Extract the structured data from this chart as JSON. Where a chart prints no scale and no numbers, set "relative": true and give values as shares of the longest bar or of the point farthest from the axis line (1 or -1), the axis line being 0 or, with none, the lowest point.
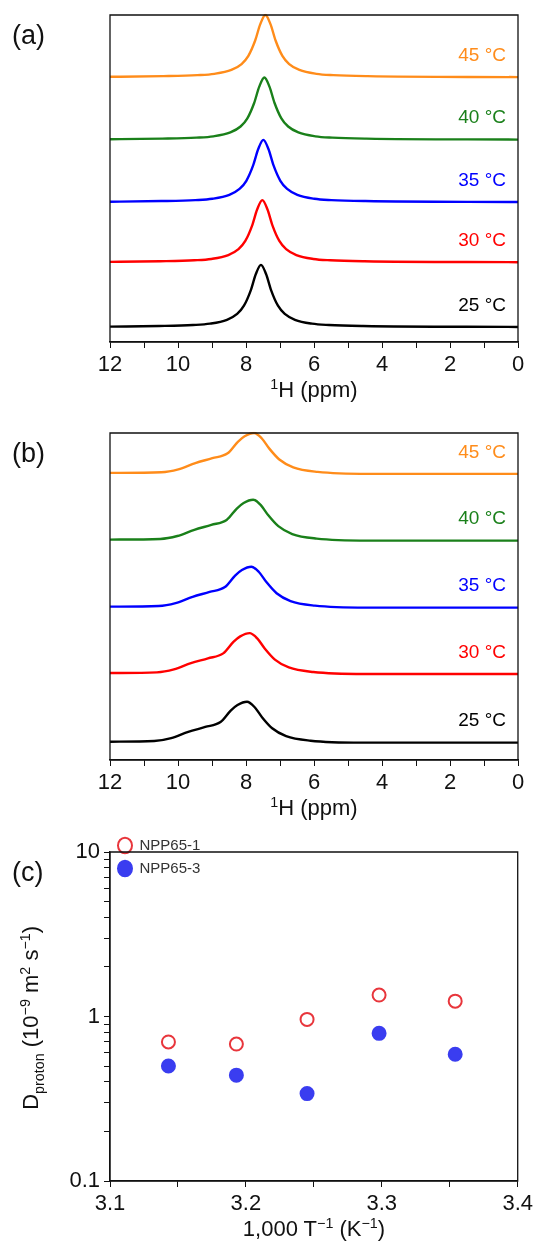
{
  "chart_data": [
    {
      "type": "line",
      "title": "(a)",
      "xlabel": "$^{1}$H (ppm)",
      "relative": true,
      "legend": false,
      "grid": false,
      "xlim": [
        12,
        0
      ],
      "xticks": [
        12,
        {
          "value": 11,
          "label": null
        },
        10,
        {
          "value": 9,
          "label": null
        },
        8,
        {
          "value": 7,
          "label": null
        },
        6,
        {
          "value": 5,
          "label": null
        },
        4,
        {
          "value": 3,
          "label": null
        },
        2,
        {
          "value": 1,
          "label": null
        },
        0
      ],
      "series": [
        {
          "name": "25 °C",
          "color": "#000000",
          "x": [
            12,
            10.56,
            9.56,
            9.06,
            8.56,
            8.26,
            8.06,
            7.86,
            7.71,
            7.56,
            7.41,
            7.26,
            7.06,
            6.86,
            6.56,
            6.06,
            5.56,
            4.56,
            0
          ],
          "values": [
            0.047,
            0.049,
            0.052,
            0.056,
            0.068,
            0.086,
            0.111,
            0.158,
            0.208,
            0.236,
            0.208,
            0.158,
            0.111,
            0.086,
            0.068,
            0.056,
            0.052,
            0.049,
            0.046
          ]
        },
        {
          "name": "30 °C",
          "color": "#ff0000",
          "x": [
            12,
            10.52,
            9.52,
            9.02,
            8.52,
            8.22,
            8.02,
            7.82,
            7.67,
            7.52,
            7.37,
            7.22,
            7.02,
            6.82,
            6.52,
            6.02,
            5.52,
            4.52,
            0
          ],
          "values": [
            0.245,
            0.247,
            0.25,
            0.254,
            0.266,
            0.284,
            0.309,
            0.356,
            0.406,
            0.434,
            0.406,
            0.356,
            0.309,
            0.284,
            0.266,
            0.254,
            0.25,
            0.247,
            0.244
          ]
        },
        {
          "name": "35 °C",
          "color": "#0000ff",
          "x": [
            12,
            10.49,
            9.49,
            8.99,
            8.49,
            8.19,
            7.99,
            7.79,
            7.64,
            7.49,
            7.34,
            7.19,
            6.99,
            6.79,
            6.49,
            5.99,
            5.49,
            4.49,
            0
          ],
          "values": [
            0.429,
            0.431,
            0.434,
            0.438,
            0.45,
            0.468,
            0.493,
            0.54,
            0.59,
            0.618,
            0.59,
            0.54,
            0.493,
            0.468,
            0.45,
            0.438,
            0.434,
            0.431,
            0.428
          ]
        },
        {
          "name": "40 °C",
          "color": "#1a801a",
          "x": [
            12,
            10.46,
            9.46,
            8.96,
            8.46,
            8.16,
            7.96,
            7.76,
            7.61,
            7.46,
            7.31,
            7.16,
            6.96,
            6.76,
            6.46,
            5.96,
            5.46,
            4.46,
            0
          ],
          "values": [
            0.62,
            0.622,
            0.625,
            0.629,
            0.641,
            0.659,
            0.684,
            0.731,
            0.781,
            0.809,
            0.781,
            0.731,
            0.684,
            0.659,
            0.641,
            0.629,
            0.625,
            0.622,
            0.619
          ]
        },
        {
          "name": "45 °C",
          "color": "#ff8c1a",
          "x": [
            12,
            10.43,
            9.43,
            8.93,
            8.43,
            8.13,
            7.93,
            7.73,
            7.58,
            7.43,
            7.28,
            7.13,
            6.93,
            6.73,
            6.43,
            5.93,
            5.43,
            4.43,
            0
          ],
          "values": [
            0.811,
            0.813,
            0.816,
            0.82,
            0.832,
            0.85,
            0.875,
            0.922,
            0.972,
            1.0,
            0.972,
            0.922,
            0.875,
            0.85,
            0.832,
            0.82,
            0.816,
            0.813,
            0.81
          ]
        }
      ]
    },
    {
      "type": "line",
      "title": "(b)",
      "xlabel": "$^{1}$H (ppm)",
      "relative": true,
      "legend": false,
      "grid": false,
      "xlim": [
        12,
        0
      ],
      "xticks": [
        12,
        {
          "value": 11,
          "label": null
        },
        10,
        {
          "value": 9,
          "label": null
        },
        8,
        {
          "value": 7,
          "label": null
        },
        6,
        {
          "value": 5,
          "label": null
        },
        4,
        {
          "value": 3,
          "label": null
        },
        2,
        {
          "value": 1,
          "label": null
        },
        0
      ],
      "series": [
        {
          "name": "25 °C",
          "color": "#000000",
          "x": [
            12,
            10.7,
            10.2,
            9.7,
            9.2,
            8.75,
            8.45,
            8.25,
            7.97,
            7.75,
            7.53,
            7.23,
            6.82,
            6.1,
            4.6,
            0
          ],
          "values": [
            0.056,
            0.058,
            0.067,
            0.086,
            0.101,
            0.116,
            0.151,
            0.168,
            0.178,
            0.162,
            0.131,
            0.097,
            0.073,
            0.059,
            0.053,
            0.053
          ]
        },
        {
          "name": "30 °C",
          "color": "#ff0000",
          "x": [
            12,
            10.62,
            10.12,
            9.62,
            9.12,
            8.67,
            8.37,
            8.17,
            7.89,
            7.67,
            7.45,
            7.15,
            6.74,
            6.02,
            4.52,
            0
          ],
          "values": [
            0.266,
            0.268,
            0.277,
            0.296,
            0.311,
            0.326,
            0.361,
            0.378,
            0.388,
            0.372,
            0.341,
            0.307,
            0.283,
            0.269,
            0.263,
            0.263
          ]
        },
        {
          "name": "35 °C",
          "color": "#0000ff",
          "x": [
            12,
            10.57,
            10.07,
            9.57,
            9.07,
            8.62,
            8.32,
            8.12,
            7.84,
            7.62,
            7.4,
            7.1,
            6.69,
            5.97,
            4.47,
            0
          ],
          "values": [
            0.469,
            0.471,
            0.48,
            0.499,
            0.514,
            0.529,
            0.564,
            0.581,
            0.591,
            0.575,
            0.544,
            0.51,
            0.486,
            0.472,
            0.466,
            0.466
          ]
        },
        {
          "name": "40 °C",
          "color": "#1a801a",
          "x": [
            12,
            10.52,
            10.02,
            9.52,
            9.02,
            8.57,
            8.27,
            8.07,
            7.79,
            7.57,
            7.35,
            7.05,
            6.64,
            5.92,
            4.42,
            0
          ],
          "values": [
            0.674,
            0.676,
            0.685,
            0.704,
            0.719,
            0.734,
            0.769,
            0.786,
            0.796,
            0.78,
            0.749,
            0.715,
            0.691,
            0.677,
            0.671,
            0.671
          ]
        },
        {
          "name": "45 °C",
          "color": "#ff8c1a",
          "x": [
            12,
            10.49,
            9.99,
            9.49,
            8.99,
            8.54,
            8.24,
            8.04,
            7.76,
            7.54,
            7.32,
            7.02,
            6.61,
            5.89,
            4.39,
            0
          ],
          "values": [
            0.878,
            0.88,
            0.889,
            0.908,
            0.923,
            0.938,
            0.973,
            0.99,
            1.0,
            0.984,
            0.953,
            0.919,
            0.895,
            0.881,
            0.875,
            0.875
          ]
        }
      ]
    },
    {
      "type": "scatter",
      "title": "(c)",
      "xlabel": "1,000 T$^{−1}$ (K$^{−1}$)",
      "ylabel": "D$_{proton}$ (10$^{−9}$ m$^{2}$ s$^{−1}$)",
      "log": "y",
      "grid": false,
      "legend": "top left",
      "xlim": [
        3.1,
        3.4
      ],
      "xticks": [
        3.1,
        {
          "value": 3.15,
          "label": null
        },
        3.2,
        {
          "value": 3.25,
          "label": null
        },
        3.3,
        {
          "value": 3.35,
          "label": null
        },
        3.4
      ],
      "ylim": [
        0.1,
        10
      ],
      "yticks": [
        0.1,
        {
          "value": 0.2,
          "label": null
        },
        {
          "value": 0.3,
          "label": null
        },
        {
          "value": 0.4,
          "label": null
        },
        {
          "value": 0.5,
          "label": null
        },
        {
          "value": 0.6,
          "label": null
        },
        {
          "value": 0.7,
          "label": null
        },
        {
          "value": 0.8,
          "label": null
        },
        {
          "value": 0.9,
          "label": null
        },
        1,
        {
          "value": 2,
          "label": null
        },
        {
          "value": 3,
          "label": null
        },
        {
          "value": 4,
          "label": null
        },
        {
          "value": 5,
          "label": null
        },
        {
          "value": 6,
          "label": null
        },
        {
          "value": 7,
          "label": null
        },
        {
          "value": 8,
          "label": null
        },
        {
          "value": 9,
          "label": null
        },
        10
      ],
      "x": [
        3.143,
        3.193,
        3.245,
        3.298,
        3.354
      ],
      "series": [
        {
          "name": "NPP65-1",
          "color": "#e8363c",
          "marker": "circle-open",
          "values": [
            0.7,
            0.68,
            0.96,
            1.35,
            1.24
          ]
        },
        {
          "name": "NPP65-3",
          "color": "#3a3df0",
          "marker": "circle",
          "values": [
            0.5,
            0.44,
            0.34,
            0.79,
            0.59
          ]
        }
      ]
    }
  ]
}
